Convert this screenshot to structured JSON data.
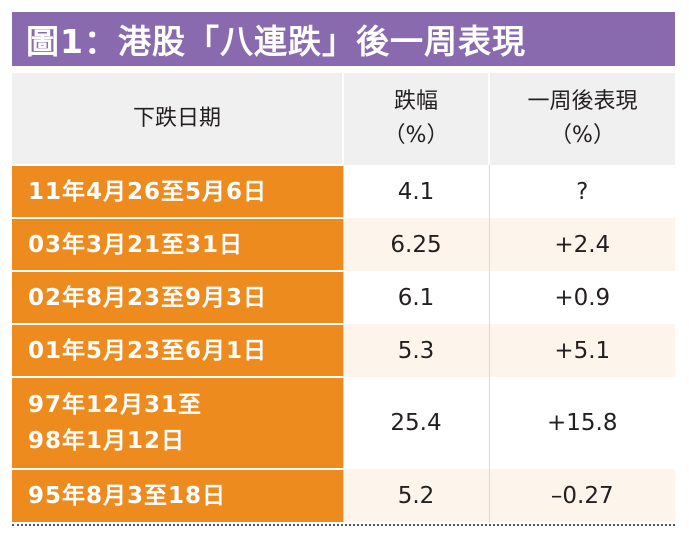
{
  "title": "圖1：港股「八連跌」後一周表現",
  "table": {
    "headers": {
      "col1": "下跌日期",
      "col2_line1": "跌幅",
      "col2_line2": "（%）",
      "col3_line1": "一周後表現",
      "col3_line2": "（%）"
    },
    "rows": [
      {
        "date_line1": "11年4月26至5月6日",
        "date_line2": "",
        "drop": "4.1",
        "week_after": "?"
      },
      {
        "date_line1": "03年3月21至31日",
        "date_line2": "",
        "drop": "6.25",
        "week_after": "+2.4"
      },
      {
        "date_line1": "02年8月23至9月3日",
        "date_line2": "",
        "drop": "6.1",
        "week_after": "+0.9"
      },
      {
        "date_line1": "01年5月23至6月1日",
        "date_line2": "",
        "drop": "5.3",
        "week_after": "+5.1"
      },
      {
        "date_line1": "97年12月31至",
        "date_line2": "98年1月12日",
        "drop": "25.4",
        "week_after": "+15.8"
      },
      {
        "date_line1": "95年8月3至18日",
        "date_line2": "",
        "drop": "5.2",
        "week_after": "–0.27"
      }
    ]
  }
}
